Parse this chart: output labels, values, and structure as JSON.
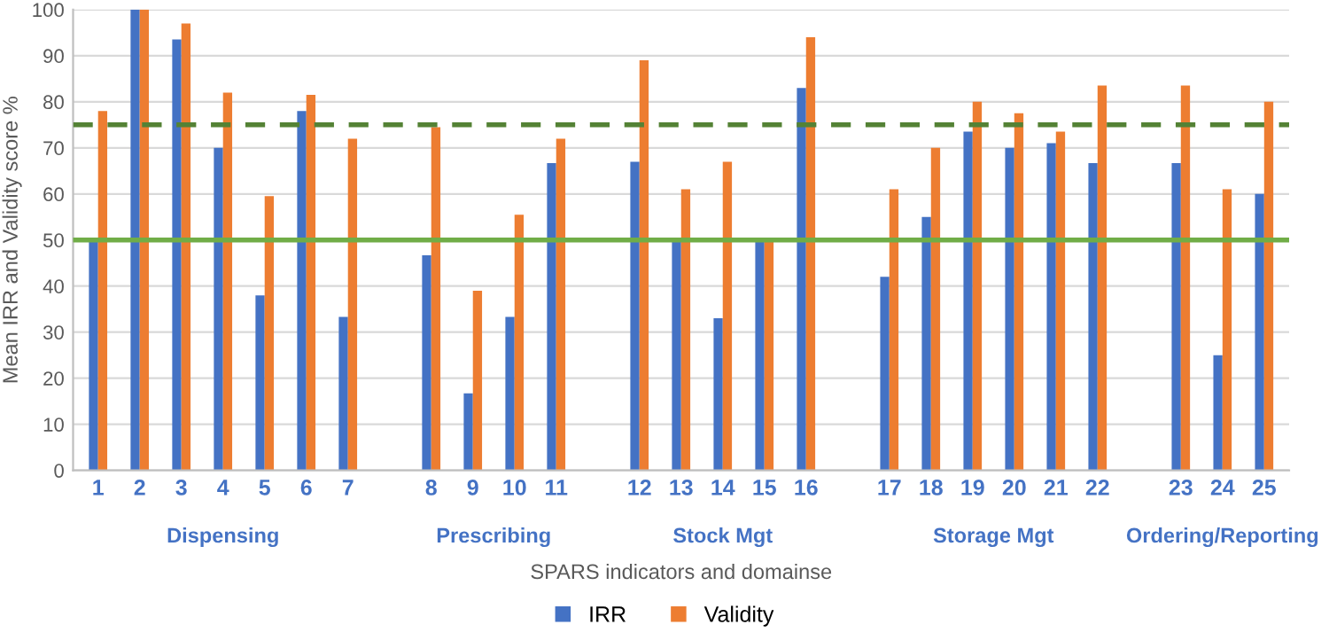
{
  "chart_data": {
    "type": "bar",
    "xlabel": "SPARS indicators and domainse",
    "ylabel": "Mean IRR and Validity score %",
    "categories": [
      "1",
      "2",
      "3",
      "4",
      "5",
      "6",
      "7",
      null,
      "8",
      "9",
      "10",
      "11",
      null,
      "12",
      "13",
      "14",
      "15",
      "16",
      null,
      "17",
      "18",
      "19",
      "20",
      "21",
      "22",
      null,
      "23",
      "24",
      "25"
    ],
    "series": [
      {
        "name": "IRR",
        "color": "#4472c4",
        "values": [
          50,
          100,
          93.5,
          70,
          38,
          78,
          33.3,
          null,
          46.7,
          16.7,
          33.3,
          66.7,
          null,
          67,
          50,
          33,
          50,
          83,
          null,
          42,
          55,
          73.5,
          70,
          71,
          66.7,
          null,
          66.7,
          25,
          60
        ]
      },
      {
        "name": "Validity",
        "color": "#ed7d31",
        "values": [
          78,
          100,
          97,
          82,
          59.5,
          81.5,
          72,
          null,
          74.5,
          39,
          55.5,
          72,
          null,
          89,
          61,
          67,
          50,
          94,
          null,
          61,
          70,
          80,
          77.5,
          73.5,
          83.5,
          null,
          83.5,
          61,
          80
        ]
      }
    ],
    "annotations": [
      "Dispensing",
      "Prescribing",
      "Stock Mgt",
      "Storage Mgt",
      "Ordering/Reporting"
    ],
    "ref_lines": [
      {
        "axis": "y",
        "value": 50,
        "color": "#70ad47",
        "line_style": "solid"
      },
      {
        "axis": "y",
        "value": 75,
        "color": "#548235",
        "line_style": "dashed"
      }
    ],
    "ylim": [
      0,
      100
    ],
    "yticks": [
      0,
      10,
      20,
      30,
      40,
      50,
      60,
      70,
      80,
      90,
      100
    ],
    "grid": "y",
    "legend": "bottom"
  }
}
